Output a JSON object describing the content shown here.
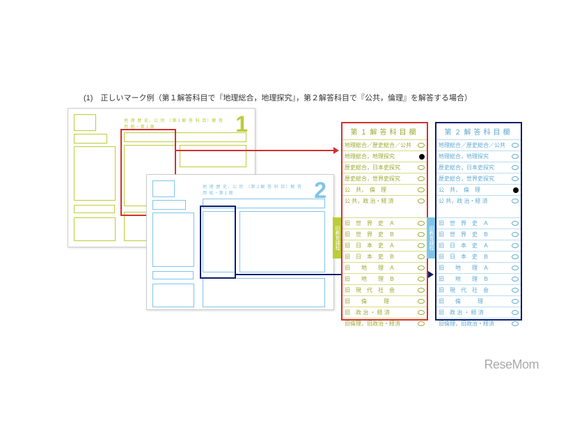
{
  "caption": "(1)　正しいマーク例（第１解答科目で『地理総合，地理探究』，第２解答科目で『公共，倫理』を解答する場合）",
  "sheets": {
    "s1": {
      "num": "1",
      "title": "地 理 歴 史，公 民 （第１解 答 科 目）解 答 用 紙・第１面",
      "accent": "#bccc3a"
    },
    "s2": {
      "num": "2",
      "title": "地 理 歴 史，公 民 （第２解 答 科 目）解 答 用 紙・第１面",
      "accent": "#7fc4e8"
    }
  },
  "panels": {
    "p1": {
      "title": "第１解答科目欄",
      "header": "地理総合／歴史総合／公共",
      "rows_top": [
        {
          "label": "地理総合，地理探究",
          "m": true
        },
        {
          "label": "歴史総合，日本史探究",
          "m": false
        },
        {
          "label": "歴史総合，世界史探究",
          "m": false
        },
        {
          "label": "公　共，　倫　理",
          "m": false
        },
        {
          "label": "公 共，政 治・経 済",
          "m": false
        }
      ],
      "rows_old": [
        {
          "label": "旧　世　界　史　Ａ",
          "m": false
        },
        {
          "label": "旧　世　界　史　Ｂ",
          "m": false
        },
        {
          "label": "旧　日　本　史　Ａ",
          "m": false
        },
        {
          "label": "旧　日　本　史　Ｂ",
          "m": false
        },
        {
          "label": "旧　　地　　理　Ａ",
          "m": false
        },
        {
          "label": "旧　　地　　理　Ｂ",
          "m": false
        },
        {
          "label": "旧　現　代　社　会",
          "m": false
        },
        {
          "label": "旧　　倫　　　理",
          "m": false
        },
        {
          "label": "旧　政 治 ・ 経 済",
          "m": false
        },
        {
          "label": "旧倫理，旧政治・経済",
          "m": false
        }
      ],
      "old_label": "旧教育課程"
    },
    "p2": {
      "title": "第２解答科目欄",
      "header": "地理総合／歴史総合／公共",
      "rows_top": [
        {
          "label": "地理総合，地理探究",
          "m": false
        },
        {
          "label": "歴史総合，日本史探究",
          "m": false
        },
        {
          "label": "歴史総合，世界史探究",
          "m": false
        },
        {
          "label": "公　共，　倫　理",
          "m": true
        },
        {
          "label": "公 共，政 治・経 済",
          "m": false
        }
      ],
      "rows_old": [
        {
          "label": "旧　世　界　史　Ａ",
          "m": false
        },
        {
          "label": "旧　世　界　史　Ｂ",
          "m": false
        },
        {
          "label": "旧　日　本　史　Ａ",
          "m": false
        },
        {
          "label": "旧　日　本　史　Ｂ",
          "m": false
        },
        {
          "label": "旧　　地　　理　Ａ",
          "m": false
        },
        {
          "label": "旧　　地　　理　Ｂ",
          "m": false
        },
        {
          "label": "旧　現　代　社　会",
          "m": false
        },
        {
          "label": "旧　　倫　　　理",
          "m": false
        },
        {
          "label": "旧　政 治 ・ 経 済",
          "m": false
        },
        {
          "label": "旧倫理，旧政治・経済",
          "m": false
        }
      ],
      "old_label": "旧教育課程"
    }
  },
  "watermark": "ReseMom",
  "colors": {
    "red": "#d32f2f",
    "blue": "#0d1b6b",
    "olive": "#bccc3a",
    "sky": "#7fc4e8"
  }
}
